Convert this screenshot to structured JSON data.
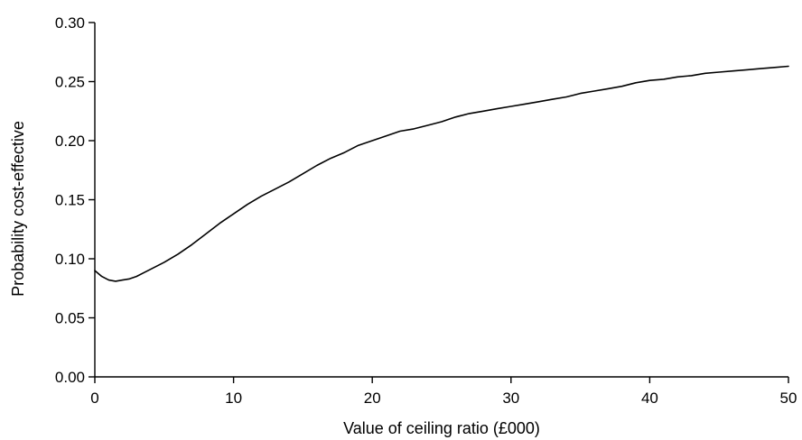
{
  "chart_data": {
    "type": "line",
    "title": "",
    "xlabel": "Value of ceiling ratio (£000)",
    "ylabel": "Probability cost-effective",
    "xlim": [
      0,
      50
    ],
    "ylim": [
      0,
      0.3
    ],
    "grid": false,
    "x_ticks": [
      0,
      10,
      20,
      30,
      40,
      50
    ],
    "x_tick_labels": [
      "0",
      "10",
      "20",
      "30",
      "40",
      "50"
    ],
    "y_ticks": [
      0,
      0.05,
      0.1,
      0.15,
      0.2,
      0.25,
      0.3
    ],
    "y_tick_labels": [
      "0.00",
      "0.05",
      "0.10",
      "0.15",
      "0.20",
      "0.25",
      "0.30"
    ],
    "series": [
      {
        "color": "#000000",
        "x": [
          0,
          0.5,
          1,
          1.5,
          2,
          2.5,
          3,
          3.5,
          4,
          5,
          6,
          7,
          8,
          9,
          10,
          11,
          12,
          13,
          14,
          15,
          16,
          17,
          18,
          19,
          20,
          21,
          22,
          23,
          24,
          25,
          26,
          27,
          28,
          29,
          30,
          31,
          32,
          33,
          34,
          35,
          36,
          37,
          38,
          39,
          40,
          41,
          42,
          43,
          44,
          45,
          46,
          47,
          48,
          49,
          50
        ],
        "y": [
          0.09,
          0.085,
          0.082,
          0.081,
          0.082,
          0.083,
          0.085,
          0.088,
          0.091,
          0.097,
          0.104,
          0.112,
          0.121,
          0.13,
          0.138,
          0.146,
          0.153,
          0.159,
          0.165,
          0.172,
          0.179,
          0.185,
          0.19,
          0.196,
          0.2,
          0.204,
          0.208,
          0.21,
          0.213,
          0.216,
          0.22,
          0.223,
          0.225,
          0.227,
          0.229,
          0.231,
          0.233,
          0.235,
          0.237,
          0.24,
          0.242,
          0.244,
          0.246,
          0.249,
          0.251,
          0.252,
          0.254,
          0.255,
          0.257,
          0.258,
          0.259,
          0.26,
          0.261,
          0.262,
          0.263
        ]
      }
    ]
  }
}
